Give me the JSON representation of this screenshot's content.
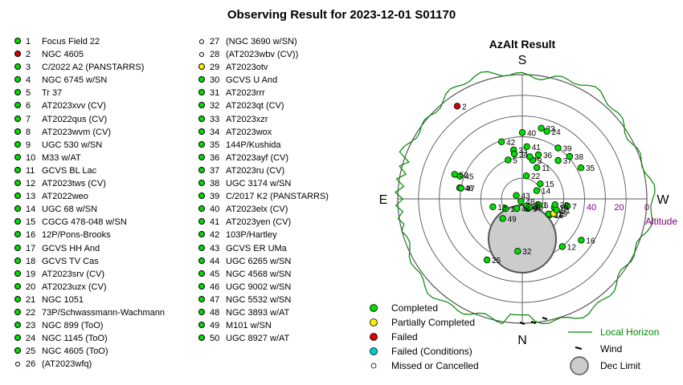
{
  "title": "Observing Result for 2023-12-01 S01170",
  "colors": {
    "completed": "#00dd00",
    "partial": "#ffee00",
    "failed": "#dd0000",
    "failed_cond": "#00cccc",
    "missed": "#ffffff",
    "horizon": "#008800",
    "altitude": "#800080"
  },
  "targets": [
    {
      "n": "1",
      "name": "Focus Field 22",
      "status": "completed"
    },
    {
      "n": "2",
      "name": "NGC 4605",
      "status": "failed"
    },
    {
      "n": "3",
      "name": "C/2022 A2 (PANSTARRS)",
      "status": "completed"
    },
    {
      "n": "4",
      "name": "NGC 6745 w/SN",
      "status": "completed"
    },
    {
      "n": "5",
      "name": "Tr 37",
      "status": "completed"
    },
    {
      "n": "6",
      "name": "AT2023xvv (CV)",
      "status": "completed"
    },
    {
      "n": "7",
      "name": "AT2022qus (CV)",
      "status": "completed"
    },
    {
      "n": "8",
      "name": "AT2023wvm (CV)",
      "status": "completed"
    },
    {
      "n": "9",
      "name": "UGC 530 w/SN",
      "status": "completed"
    },
    {
      "n": "10",
      "name": "M33 w/AT",
      "status": "completed"
    },
    {
      "n": "11",
      "name": "GCVS BL Lac",
      "status": "completed"
    },
    {
      "n": "12",
      "name": "AT2023tws (CV)",
      "status": "completed"
    },
    {
      "n": "13",
      "name": "AT2022weo",
      "status": "completed"
    },
    {
      "n": "14",
      "name": "UGC 68 w/SN",
      "status": "completed"
    },
    {
      "n": "15",
      "name": "CGCG 478-048 w/SN",
      "status": "completed"
    },
    {
      "n": "16",
      "name": "12P/Pons-Brooks",
      "status": "completed"
    },
    {
      "n": "17",
      "name": "GCVS HH And",
      "status": "completed"
    },
    {
      "n": "18",
      "name": "GCVS TV Cas",
      "status": "completed"
    },
    {
      "n": "19",
      "name": "AT2023srv (CV)",
      "status": "completed"
    },
    {
      "n": "20",
      "name": "AT2023uzx (CV)",
      "status": "completed"
    },
    {
      "n": "21",
      "name": "NGC 1051",
      "status": "completed"
    },
    {
      "n": "22",
      "name": "73P/Schwassmann-Wachmann",
      "status": "completed"
    },
    {
      "n": "23",
      "name": "NGC 899 (ToO)",
      "status": "completed"
    },
    {
      "n": "24",
      "name": "NGC 1145 (ToO)",
      "status": "completed"
    },
    {
      "n": "25",
      "name": "NGC 4605 (ToO)",
      "status": "completed"
    },
    {
      "n": "26",
      "name": "(AT2023wfq)",
      "status": "missed"
    },
    {
      "n": "27",
      "name": "(NGC 3690 w/SN)",
      "status": "missed"
    },
    {
      "n": "28",
      "name": "(AT2023wbv (CV))",
      "status": "missed"
    },
    {
      "n": "29",
      "name": "AT2023otv",
      "status": "partial"
    },
    {
      "n": "30",
      "name": "GCVS U And",
      "status": "completed"
    },
    {
      "n": "31",
      "name": "AT2023rrr",
      "status": "completed"
    },
    {
      "n": "32",
      "name": "AT2023qt (CV)",
      "status": "completed"
    },
    {
      "n": "33",
      "name": "AT2023xzr",
      "status": "completed"
    },
    {
      "n": "34",
      "name": "AT2023wox",
      "status": "completed"
    },
    {
      "n": "35",
      "name": "144P/Kushida",
      "status": "completed"
    },
    {
      "n": "36",
      "name": "AT2023ayf (CV)",
      "status": "completed"
    },
    {
      "n": "37",
      "name": "AT2023ru (CV)",
      "status": "completed"
    },
    {
      "n": "38",
      "name": "UGC 3174 w/SN",
      "status": "completed"
    },
    {
      "n": "39",
      "name": "C/2017 K2 (PANSTARRS)",
      "status": "completed"
    },
    {
      "n": "40",
      "name": "AT2023elx (CV)",
      "status": "completed"
    },
    {
      "n": "41",
      "name": "AT2023yen (CV)",
      "status": "completed"
    },
    {
      "n": "42",
      "name": "103P/Hartley",
      "status": "completed"
    },
    {
      "n": "43",
      "name": "GCVS ER UMa",
      "status": "completed"
    },
    {
      "n": "44",
      "name": "UGC 6265 w/SN",
      "status": "completed"
    },
    {
      "n": "45",
      "name": "NGC 4568 w/SN",
      "status": "completed"
    },
    {
      "n": "46",
      "name": "UGC 9002 w/SN",
      "status": "completed"
    },
    {
      "n": "47",
      "name": "NGC 5532 w/SN",
      "status": "completed"
    },
    {
      "n": "48",
      "name": "NGC 3893 w/AT",
      "status": "completed"
    },
    {
      "n": "49",
      "name": "M101 w/SN",
      "status": "completed"
    },
    {
      "n": "50",
      "name": "UGC 8927 w/AT",
      "status": "completed"
    }
  ],
  "chart_data": {
    "type": "scatter",
    "title": "AzAlt Result",
    "projection": "polar azimuth-altitude",
    "directions": {
      "s": "S",
      "n": "N",
      "e": "E",
      "w": "W"
    },
    "altitude_label": "Altitude",
    "altitude_ticks": [
      {
        "alt": 0,
        "label": "0"
      },
      {
        "alt": 20,
        "label": "20"
      },
      {
        "alt": 40,
        "label": "40"
      }
    ],
    "altitude_rings": [
      0,
      15,
      30,
      45,
      60,
      75
    ],
    "points": [
      {
        "id": "1",
        "az": 290,
        "alt": 78,
        "status": "completed"
      },
      {
        "id": "2",
        "az": 145,
        "alt": 8,
        "status": "failed"
      },
      {
        "id": "3",
        "az": 195,
        "alt": 61,
        "status": "completed"
      },
      {
        "id": "4",
        "az": 190,
        "alt": 59,
        "status": "completed"
      },
      {
        "id": "5",
        "az": 160,
        "alt": 60,
        "status": "completed"
      },
      {
        "id": "6",
        "az": 290,
        "alt": 77,
        "status": "completed"
      },
      {
        "id": "7",
        "az": 279,
        "alt": 57,
        "status": "completed"
      },
      {
        "id": "8",
        "az": 300,
        "alt": 68,
        "status": "completed"
      },
      {
        "id": "9",
        "az": 330,
        "alt": 82,
        "status": "completed"
      },
      {
        "id": "10",
        "az": 60,
        "alt": 76,
        "status": "completed"
      },
      {
        "id": "11",
        "az": 205,
        "alt": 65,
        "status": "completed"
      },
      {
        "id": "12",
        "az": 320,
        "alt": 45,
        "status": "completed"
      },
      {
        "id": "13",
        "az": 75,
        "alt": 68,
        "status": "completed"
      },
      {
        "id": "14",
        "az": 240,
        "alt": 78,
        "status": "completed"
      },
      {
        "id": "15",
        "az": 230,
        "alt": 73,
        "status": "completed"
      },
      {
        "id": "16",
        "az": 305,
        "alt": 38,
        "status": "completed"
      },
      {
        "id": "17",
        "az": 330,
        "alt": 84,
        "status": "completed"
      },
      {
        "id": "18",
        "az": 300,
        "alt": 67,
        "status": "completed"
      },
      {
        "id": "19",
        "az": 285,
        "alt": 66,
        "status": "completed"
      },
      {
        "id": "20",
        "az": 320,
        "alt": 82,
        "status": "completed"
      },
      {
        "id": "21",
        "az": 300,
        "alt": 68,
        "status": "completed"
      },
      {
        "id": "22",
        "az": 190,
        "alt": 73,
        "status": "completed"
      },
      {
        "id": "23",
        "az": 195,
        "alt": 37,
        "status": "completed"
      },
      {
        "id": "24",
        "az": 200,
        "alt": 38,
        "status": "completed"
      },
      {
        "id": "25",
        "az": 30,
        "alt": 39,
        "status": "completed"
      },
      {
        "id": "29",
        "az": 295,
        "alt": 65,
        "status": "partial"
      },
      {
        "id": "30",
        "az": 280,
        "alt": 66,
        "status": "completed"
      },
      {
        "id": "31",
        "az": 288,
        "alt": 64,
        "status": "completed"
      },
      {
        "id": "32",
        "az": 5,
        "alt": 52,
        "status": "completed"
      },
      {
        "id": "33",
        "az": 170,
        "alt": 54,
        "status": "completed"
      },
      {
        "id": "34",
        "az": 170,
        "alt": 57,
        "status": "completed"
      },
      {
        "id": "35",
        "az": 242,
        "alt": 42,
        "status": "completed"
      },
      {
        "id": "36",
        "az": 200,
        "alt": 56,
        "status": "completed"
      },
      {
        "id": "37",
        "az": 223,
        "alt": 52,
        "status": "completed"
      },
      {
        "id": "38",
        "az": 228,
        "alt": 44,
        "status": "completed"
      },
      {
        "id": "39",
        "az": 215,
        "alt": 45,
        "status": "completed"
      },
      {
        "id": "40",
        "az": 180,
        "alt": 42,
        "status": "completed"
      },
      {
        "id": "41",
        "az": 185,
        "alt": 52,
        "status": "completed"
      },
      {
        "id": "42",
        "az": 160,
        "alt": 46,
        "status": "completed"
      },
      {
        "id": "43",
        "az": 120,
        "alt": 85,
        "status": "completed"
      },
      {
        "id": "44",
        "az": 30,
        "alt": 82,
        "status": "completed"
      },
      {
        "id": "45",
        "az": 110,
        "alt": 42,
        "status": "completed"
      },
      {
        "id": "46",
        "az": 100,
        "alt": 44,
        "status": "completed"
      },
      {
        "id": "47",
        "az": 100,
        "alt": 45,
        "status": "completed"
      },
      {
        "id": "48",
        "az": 30,
        "alt": 88,
        "status": "completed"
      },
      {
        "id": "49",
        "az": 45,
        "alt": 70,
        "status": "completed"
      },
      {
        "id": "50",
        "az": 110,
        "alt": 38,
        "status": "completed"
      }
    ],
    "dec_limit": {
      "label": "Dec Limit"
    },
    "legend": [
      {
        "label": "Completed",
        "status": "completed"
      },
      {
        "label": "Partially Completed",
        "status": "partial"
      },
      {
        "label": "Failed",
        "status": "failed"
      },
      {
        "label": "Failed (Conditions)",
        "status": "failed_cond"
      },
      {
        "label": "Missed or Cancelled",
        "status": "missed"
      }
    ],
    "legend_lines": [
      {
        "label": "Local Horizon",
        "kind": "line"
      },
      {
        "label": "Wind",
        "kind": "tick"
      },
      {
        "label": "Dec Limit",
        "kind": "disc"
      }
    ]
  }
}
